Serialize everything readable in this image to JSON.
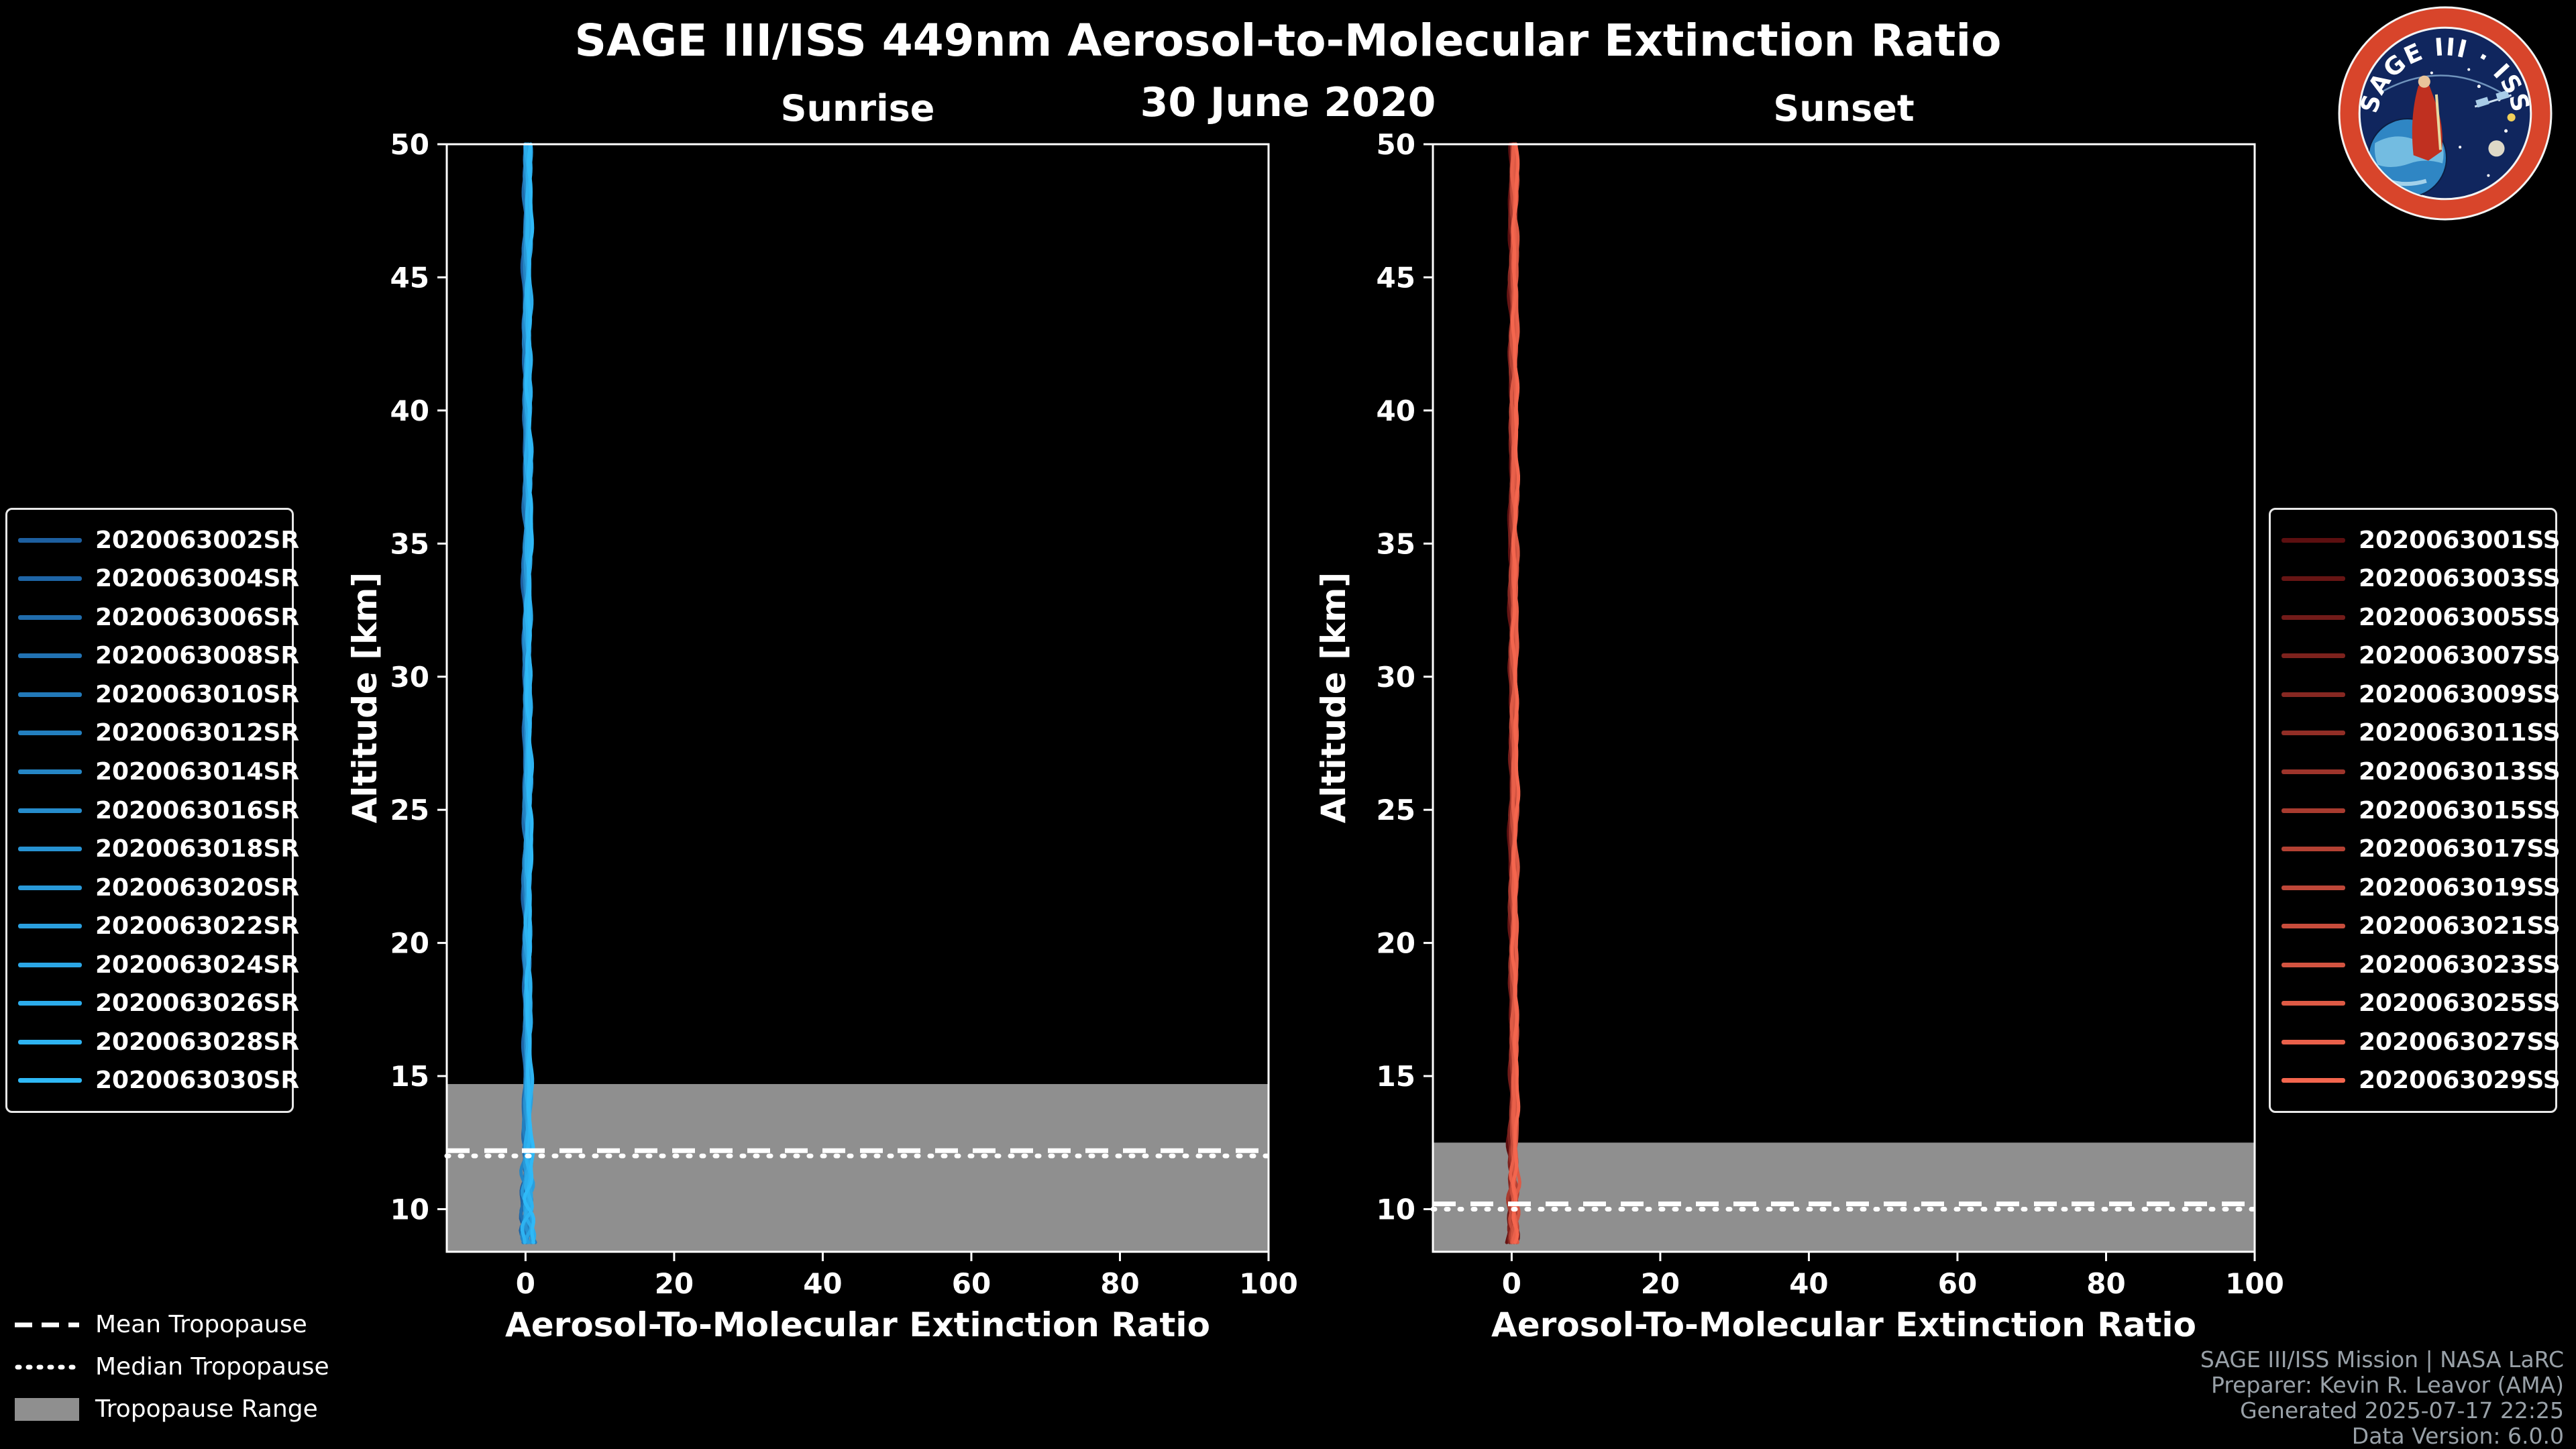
{
  "chart_data": {
    "type": "line",
    "title": "SAGE III/ISS 449nm Aerosol-to-Molecular Extinction Ratio",
    "subtitle": "30 June 2020",
    "xlabel": "Aerosol-To-Molecular Extinction Ratio",
    "ylabel": "Altitude [km]",
    "xlim": [
      -10.6,
      100
    ],
    "ylim": [
      8.4,
      50
    ],
    "xticks": [
      0,
      20,
      40,
      60,
      80,
      100
    ],
    "yticks": [
      10,
      15,
      20,
      25,
      30,
      35,
      40,
      45,
      50
    ],
    "grid": false,
    "background": "#000000",
    "axis_color": "#ffffff",
    "legend_position": "outside-left-and-right",
    "tropopause_legend": {
      "mean_label": "Mean Tropopause",
      "median_label": "Median Tropopause",
      "range_label": "Tropopause Range",
      "range_color": "#8f8f8f",
      "line_color": "#ffffff"
    },
    "panels": [
      {
        "id": "sunrise",
        "title": "Sunrise",
        "tropopause": {
          "mean_km": 12.2,
          "median_km": 12.0,
          "range_low_km": 8.4,
          "range_high_km": 14.7
        },
        "profile": {
          "x_center": 0.25,
          "alt_top_km": 50.0,
          "alt_bottom_km": 8.65,
          "x_spread": 0.6,
          "x_spread_low": 1.8
        },
        "series": [
          {
            "label": "2020063002SR",
            "color": "#1d5fa0"
          },
          {
            "label": "2020063004SR",
            "color": "#1e65a6"
          },
          {
            "label": "2020063006SR",
            "color": "#206cac"
          },
          {
            "label": "2020063008SR",
            "color": "#2172b3"
          },
          {
            "label": "2020063010SR",
            "color": "#2279b9"
          },
          {
            "label": "2020063012SR",
            "color": "#237fbf"
          },
          {
            "label": "2020063014SR",
            "color": "#2586c5"
          },
          {
            "label": "2020063016SR",
            "color": "#268ccc"
          },
          {
            "label": "2020063018SR",
            "color": "#2792d2"
          },
          {
            "label": "2020063020SR",
            "color": "#2999d8"
          },
          {
            "label": "2020063022SR",
            "color": "#2a9fde"
          },
          {
            "label": "2020063024SR",
            "color": "#2ba6e5"
          },
          {
            "label": "2020063026SR",
            "color": "#2caceb"
          },
          {
            "label": "2020063028SR",
            "color": "#2eb3f1"
          },
          {
            "label": "2020063030SR",
            "color": "#2fb9f7"
          }
        ]
      },
      {
        "id": "sunset",
        "title": "Sunset",
        "tropopause": {
          "mean_km": 10.2,
          "median_km": 10.0,
          "range_low_km": 8.4,
          "range_high_km": 12.5
        },
        "profile": {
          "x_center": 0.25,
          "alt_top_km": 50.0,
          "alt_bottom_km": 8.65,
          "x_spread": 0.55,
          "x_spread_low": 1.2
        },
        "series": [
          {
            "label": "2020063001SS",
            "color": "#5c0f10"
          },
          {
            "label": "2020063003SS",
            "color": "#671514"
          },
          {
            "label": "2020063005SS",
            "color": "#721b19"
          },
          {
            "label": "2020063007SS",
            "color": "#7d221d"
          },
          {
            "label": "2020063009SS",
            "color": "#872822"
          },
          {
            "label": "2020063011SS",
            "color": "#922e26"
          },
          {
            "label": "2020063013SS",
            "color": "#9d342b"
          },
          {
            "label": "2020063015SS",
            "color": "#a83b2f"
          },
          {
            "label": "2020063017SS",
            "color": "#b34133"
          },
          {
            "label": "2020063019SS",
            "color": "#be4738"
          },
          {
            "label": "2020063021SS",
            "color": "#c84d3c"
          },
          {
            "label": "2020063023SS",
            "color": "#d35441"
          },
          {
            "label": "2020063025SS",
            "color": "#de5a45"
          },
          {
            "label": "2020063027SS",
            "color": "#e9604a"
          },
          {
            "label": "2020063029SS",
            "color": "#f4664e"
          }
        ]
      }
    ]
  },
  "logo": {
    "title_top": "SAGE III · ISS",
    "ring_color": "#d8452b",
    "field_color": "#10265e"
  },
  "footer": {
    "color": "#99a1a8",
    "lines": [
      "SAGE III/ISS Mission | NASA LaRC",
      "Preparer: Kevin R. Leavor (AMA)",
      "Generated 2025-07-17 22:25",
      "Data Version: 6.0.0"
    ]
  }
}
